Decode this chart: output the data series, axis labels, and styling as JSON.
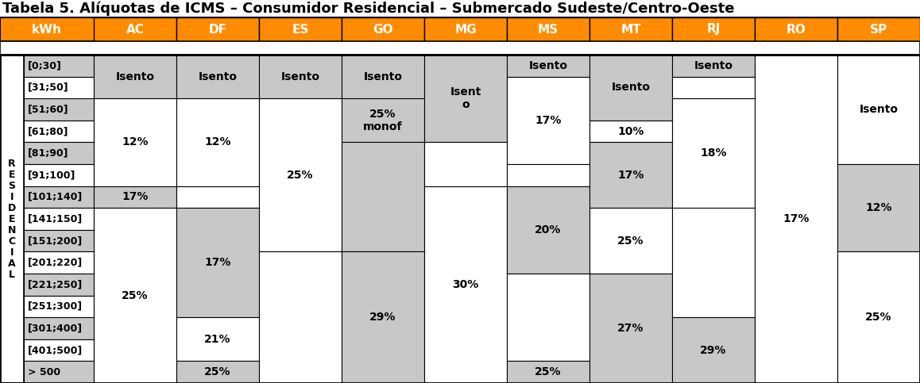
{
  "title": "Tabela 5. Alíquotas de ICMS – Consumidor Residencial – Submercado Sudeste/Centro-Oeste",
  "col_headers": [
    "kWh",
    "AC",
    "DF",
    "ES",
    "GO",
    "MG",
    "MS",
    "MT",
    "RJ",
    "RO",
    "SP"
  ],
  "row_labels": [
    "[0;30]",
    "[31;50]",
    "[51;60]",
    "[61;80]",
    "[81;90]",
    "[91;100]",
    "[101;140]",
    "[141;150]",
    "[151;200]",
    "[201;220]",
    "[221;250]",
    "[251;300]",
    "[301;400]",
    "[401;500]",
    "> 500"
  ],
  "side_label": "R\nE\nS\nI\nD\nE\nN\nC\nI\nA\nL",
  "orange": "#FF8C00",
  "light_gray": "#C8C8C8",
  "white": "#FFFFFF",
  "cell_specs": [
    [
      "AC",
      0,
      1,
      "Isento",
      "#C8C8C8"
    ],
    [
      "AC",
      2,
      5,
      "12%",
      "#FFFFFF"
    ],
    [
      "AC",
      6,
      6,
      "17%",
      "#C8C8C8"
    ],
    [
      "AC",
      7,
      14,
      "25%",
      "#FFFFFF"
    ],
    [
      "DF",
      0,
      1,
      "Isento",
      "#C8C8C8"
    ],
    [
      "DF",
      2,
      5,
      "12%",
      "#FFFFFF"
    ],
    [
      "DF",
      6,
      6,
      "",
      "#FFFFFF"
    ],
    [
      "DF",
      7,
      11,
      "17%",
      "#C8C8C8"
    ],
    [
      "DF",
      12,
      13,
      "21%",
      "#FFFFFF"
    ],
    [
      "DF",
      14,
      14,
      "25%",
      "#C8C8C8"
    ],
    [
      "ES",
      0,
      1,
      "Isento",
      "#C8C8C8"
    ],
    [
      "ES",
      2,
      8,
      "25%",
      "#FFFFFF"
    ],
    [
      "ES",
      9,
      14,
      "",
      "#FFFFFF"
    ],
    [
      "GO",
      0,
      1,
      "Isento",
      "#C8C8C8"
    ],
    [
      "GO",
      2,
      3,
      "25%\nmonof",
      "#C8C8C8"
    ],
    [
      "GO",
      4,
      8,
      "",
      "#C8C8C8"
    ],
    [
      "GO",
      9,
      14,
      "29%",
      "#C8C8C8"
    ],
    [
      "MG",
      0,
      3,
      "Isent\no",
      "#C8C8C8"
    ],
    [
      "MG",
      4,
      5,
      "",
      "#FFFFFF"
    ],
    [
      "MG",
      6,
      14,
      "30%",
      "#FFFFFF"
    ],
    [
      "MS",
      0,
      0,
      "Isento",
      "#C8C8C8"
    ],
    [
      "MS",
      1,
      4,
      "17%",
      "#FFFFFF"
    ],
    [
      "MS",
      5,
      5,
      "",
      "#FFFFFF"
    ],
    [
      "MS",
      6,
      9,
      "20%",
      "#C8C8C8"
    ],
    [
      "MS",
      10,
      13,
      "",
      "#FFFFFF"
    ],
    [
      "MS",
      14,
      14,
      "25%",
      "#C8C8C8"
    ],
    [
      "MT",
      0,
      2,
      "Isento",
      "#C8C8C8"
    ],
    [
      "MT",
      3,
      3,
      "10%",
      "#FFFFFF"
    ],
    [
      "MT",
      4,
      6,
      "17%",
      "#C8C8C8"
    ],
    [
      "MT",
      7,
      9,
      "25%",
      "#FFFFFF"
    ],
    [
      "MT",
      10,
      14,
      "27%",
      "#C8C8C8"
    ],
    [
      "RJ",
      0,
      0,
      "Isento",
      "#C8C8C8"
    ],
    [
      "RJ",
      1,
      1,
      "",
      "#FFFFFF"
    ],
    [
      "RJ",
      2,
      6,
      "18%",
      "#FFFFFF"
    ],
    [
      "RJ",
      7,
      11,
      "",
      "#FFFFFF"
    ],
    [
      "RJ",
      12,
      14,
      "29%",
      "#C8C8C8"
    ],
    [
      "RO",
      0,
      14,
      "17%",
      "#FFFFFF"
    ],
    [
      "SP",
      0,
      4,
      "Isento",
      "#FFFFFF"
    ],
    [
      "SP",
      5,
      8,
      "12%",
      "#C8C8C8"
    ],
    [
      "SP",
      9,
      14,
      "25%",
      "#FFFFFF"
    ]
  ],
  "title_fontsize": 13,
  "header_fontsize": 11,
  "cell_fontsize": 10,
  "row_label_fontsize": 9,
  "side_fontsize": 9
}
